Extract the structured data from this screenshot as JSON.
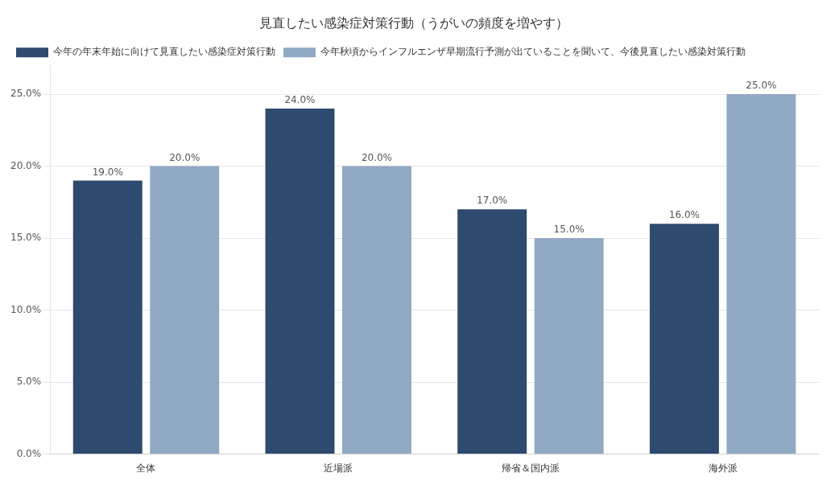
{
  "chart_data": {
    "type": "bar",
    "title": "見直したい感染症対策行動（うがいの頻度を増やす）",
    "categories": [
      "全体",
      "近場派",
      "帰省＆国内派",
      "海外派"
    ],
    "series": [
      {
        "name": "今年の年末年始に向けて見直したい感染症対策行動",
        "color": "#2e4a6e",
        "values": [
          19.0,
          24.0,
          17.0,
          16.0
        ],
        "value_labels": [
          "19.0%",
          "24.0%",
          "17.0%",
          "16.0%"
        ]
      },
      {
        "name": "今年秋頃からインフルエンザ早期流行予測が出ていることを聞いて、今後見直したい感染対策行動",
        "color": "#90aac4",
        "values": [
          20.0,
          20.0,
          15.0,
          25.0
        ],
        "value_labels": [
          "20.0%",
          "20.0%",
          "15.0%",
          "25.0%"
        ]
      }
    ],
    "ylim": [
      0,
      27
    ],
    "yticks": [
      {
        "value": 0,
        "label": "0.0%"
      },
      {
        "value": 5,
        "label": "5.0%"
      },
      {
        "value": 10,
        "label": "10.0%"
      },
      {
        "value": 15,
        "label": "15.0%"
      },
      {
        "value": 20,
        "label": "20.0%"
      },
      {
        "value": 25,
        "label": "25.0%"
      }
    ],
    "grid": true,
    "legend": "top",
    "data_labels": true
  }
}
